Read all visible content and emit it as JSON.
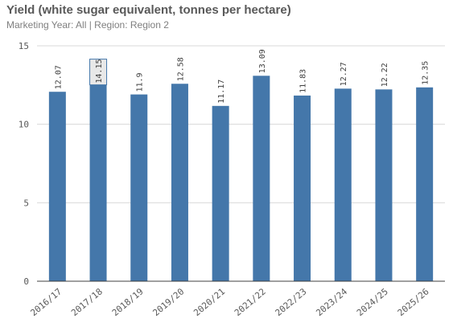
{
  "title": "Yield (white sugar equivalent, tonnes per hectare)",
  "subtitle": "Marketing Year: All | Region: Region 2",
  "colors": {
    "bar": "#4477aa",
    "bar_highlight_bg": "#e8e8e8",
    "grid": "#d9d9d9",
    "axis": "#404040"
  },
  "chart_data": {
    "type": "bar",
    "title": "Yield (white sugar equivalent, tonnes per hectare)",
    "subtitle": "Marketing Year: All | Region: Region 2",
    "xlabel": "",
    "ylabel": "",
    "ylim": [
      0,
      15
    ],
    "yticks": [
      0,
      5,
      10,
      15
    ],
    "grid": true,
    "categories": [
      "2016/17",
      "2017/18",
      "2018/19",
      "2019/20",
      "2020/21",
      "2021/22",
      "2022/23",
      "2023/24",
      "2024/25",
      "2025/26"
    ],
    "values": [
      12.07,
      14.15,
      11.9,
      12.58,
      11.17,
      13.09,
      11.83,
      12.27,
      12.22,
      12.35
    ],
    "value_labels": [
      "12.07",
      "14.15",
      "11.9",
      "12.58",
      "11.17",
      "13.09",
      "11.83",
      "12.27",
      "12.22",
      "12.35"
    ],
    "highlighted_index": 1
  }
}
